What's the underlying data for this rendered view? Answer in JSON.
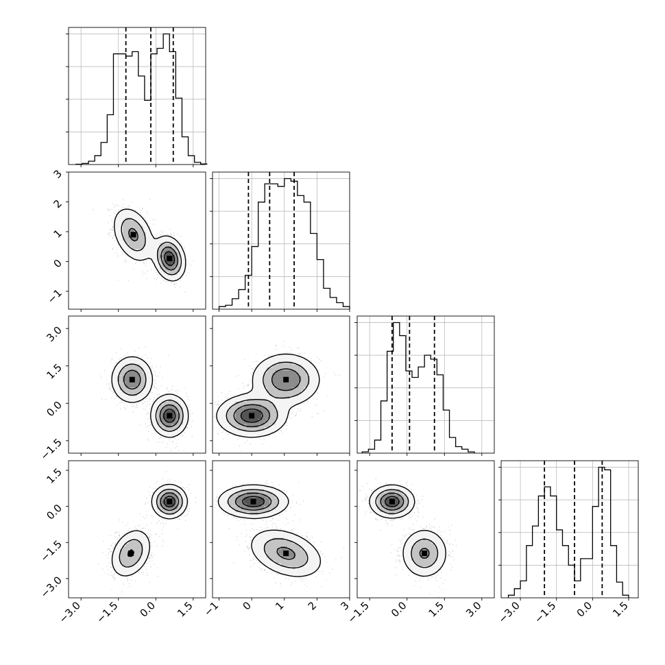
{
  "figure": {
    "type": "corner-plot",
    "n_params": 4
  },
  "chart_data": [
    {
      "type": "histogram",
      "panel": "hist-0",
      "row": 0,
      "col": 0,
      "xlim": [
        -3.5,
        2.0
      ],
      "bin_edges": [
        -3.2,
        -2.95,
        -2.7,
        -2.45,
        -2.2,
        -1.95,
        -1.7,
        -1.45,
        -1.2,
        -0.95,
        -0.7,
        -0.45,
        -0.2,
        0.05,
        0.3,
        0.55,
        0.8,
        1.05,
        1.3,
        1.55,
        1.8,
        2.05
      ],
      "counts": [
        0.3,
        1,
        3,
        8,
        20,
        45,
        100,
        100,
        98,
        102,
        80,
        58,
        100,
        105,
        118,
        102,
        60,
        25,
        8,
        2,
        0.5
      ],
      "quantiles": [
        -1.2,
        -0.2,
        0.7
      ],
      "grid": true
    },
    {
      "type": "histogram",
      "panel": "hist-1",
      "row": 1,
      "col": 1,
      "xlim": [
        -1.2,
        3.0
      ],
      "bin_edges": [
        -1.0,
        -0.8,
        -0.6,
        -0.4,
        -0.2,
        0.0,
        0.2,
        0.4,
        0.6,
        0.8,
        1.0,
        1.2,
        1.4,
        1.6,
        1.8,
        2.0,
        2.2,
        2.4,
        2.6,
        2.8,
        3.0
      ],
      "counts": [
        2,
        3,
        8,
        15,
        26,
        48,
        82,
        96,
        96,
        94,
        100,
        98,
        87,
        82,
        58,
        38,
        16,
        9,
        5,
        2
      ],
      "quantiles": [
        -0.1,
        0.55,
        1.3
      ],
      "grid": true
    },
    {
      "type": "histogram",
      "panel": "hist-2",
      "row": 2,
      "col": 2,
      "xlim": [
        -2.0,
        3.5
      ],
      "bin_edges": [
        -1.8,
        -1.55,
        -1.3,
        -1.05,
        -0.8,
        -0.55,
        -0.3,
        -0.05,
        0.2,
        0.45,
        0.7,
        0.95,
        1.2,
        1.45,
        1.7,
        1.95,
        2.2,
        2.45,
        2.7
      ],
      "counts": [
        1,
        3,
        10,
        40,
        78,
        100,
        90,
        63,
        58,
        66,
        75,
        72,
        60,
        33,
        12,
        5,
        3,
        1
      ],
      "quantiles": [
        -0.6,
        0.1,
        1.1
      ],
      "grid": true
    },
    {
      "type": "histogram",
      "panel": "hist-3",
      "row": 3,
      "col": 3,
      "xlim": [
        -3.8,
        1.9
      ],
      "bin_edges": [
        -3.5,
        -3.25,
        -3.0,
        -2.75,
        -2.5,
        -2.25,
        -2.0,
        -1.75,
        -1.5,
        -1.25,
        -1.0,
        -0.75,
        -0.5,
        -0.25,
        0.0,
        0.25,
        0.5,
        0.75,
        1.0,
        1.25,
        1.5
      ],
      "counts": [
        2,
        7,
        13,
        40,
        55,
        78,
        85,
        78,
        52,
        40,
        25,
        13,
        30,
        30,
        70,
        100,
        98,
        40,
        12,
        2
      ],
      "quantiles": [
        -2.0,
        -0.75,
        0.4
      ],
      "grid": true
    },
    {
      "type": "density-2d",
      "panel": "density-1-0",
      "row": 1,
      "col": 0,
      "xlim": [
        -3.5,
        2.0
      ],
      "ylim": [
        -1.6,
        3.0
      ],
      "modes": [
        {
          "x": -0.9,
          "y": 0.9,
          "sx": 0.4,
          "sy": 0.45,
          "rho": -0.35,
          "w": 0.5
        },
        {
          "x": 0.55,
          "y": 0.1,
          "sx": 0.3,
          "sy": 0.35,
          "rho": -0.2,
          "w": 0.5
        }
      ]
    },
    {
      "type": "density-2d",
      "panel": "density-2-0",
      "row": 2,
      "col": 0,
      "xlim": [
        -3.5,
        2.0
      ],
      "ylim": [
        -2.0,
        3.5
      ],
      "modes": [
        {
          "x": -0.95,
          "y": 0.95,
          "sx": 0.4,
          "sy": 0.45,
          "rho": 0.0,
          "w": 0.5
        },
        {
          "x": 0.55,
          "y": -0.5,
          "sx": 0.35,
          "sy": 0.4,
          "rho": 0.0,
          "w": 0.5
        }
      ]
    },
    {
      "type": "density-2d",
      "panel": "density-2-1",
      "row": 2,
      "col": 1,
      "xlim": [
        -1.2,
        3.0
      ],
      "ylim": [
        -2.0,
        3.5
      ],
      "modes": [
        {
          "x": 1.05,
          "y": 0.95,
          "sx": 0.5,
          "sy": 0.5,
          "rho": 0.0,
          "w": 0.5
        },
        {
          "x": 0.0,
          "y": -0.5,
          "sx": 0.5,
          "sy": 0.4,
          "rho": 0.0,
          "w": 0.5
        }
      ]
    },
    {
      "type": "density-2d",
      "panel": "density-3-0",
      "row": 3,
      "col": 0,
      "xlim": [
        -3.5,
        2.0
      ],
      "ylim": [
        -3.8,
        1.9
      ],
      "modes": [
        {
          "x": 0.55,
          "y": 0.2,
          "sx": 0.33,
          "sy": 0.33,
          "rho": 0.0,
          "w": 0.5
        },
        {
          "x": -1.0,
          "y": -1.95,
          "sx": 0.4,
          "sy": 0.5,
          "rho": 0.3,
          "w": 0.5
        }
      ]
    },
    {
      "type": "density-2d",
      "panel": "density-3-1",
      "row": 3,
      "col": 1,
      "xlim": [
        -1.2,
        3.0
      ],
      "ylim": [
        -3.8,
        1.9
      ],
      "modes": [
        {
          "x": 0.05,
          "y": 0.2,
          "sx": 0.5,
          "sy": 0.32,
          "rho": 0.0,
          "w": 0.5
        },
        {
          "x": 1.05,
          "y": -1.95,
          "sx": 0.55,
          "sy": 0.5,
          "rho": -0.35,
          "w": 0.5
        }
      ]
    },
    {
      "type": "density-2d",
      "panel": "density-3-2",
      "row": 3,
      "col": 2,
      "xlim": [
        -2.0,
        3.5
      ],
      "ylim": [
        -3.8,
        1.9
      ],
      "modes": [
        {
          "x": -0.6,
          "y": 0.2,
          "sx": 0.42,
          "sy": 0.32,
          "rho": 0.0,
          "w": 0.5
        },
        {
          "x": 0.7,
          "y": -1.95,
          "sx": 0.45,
          "sy": 0.5,
          "rho": 0.0,
          "w": 0.5
        }
      ]
    }
  ],
  "axes": {
    "x": [
      {
        "ticks": [
          -3.0,
          -1.5,
          0.0,
          1.5
        ],
        "labels": [
          "−3.0",
          "−1.5",
          "0.0",
          "1.5"
        ]
      },
      {
        "ticks": [
          -1,
          0,
          1,
          2,
          3
        ],
        "labels": [
          "−1",
          "0",
          "1",
          "2",
          "3"
        ]
      },
      {
        "ticks": [
          -1.5,
          0.0,
          1.5,
          3.0
        ],
        "labels": [
          "−1.5",
          "0.0",
          "1.5",
          "3.0"
        ]
      },
      {
        "ticks": [
          -3.0,
          -1.5,
          0.0,
          1.5
        ],
        "labels": [
          "−3.0",
          "−1.5",
          "0.0",
          "1.5"
        ]
      }
    ],
    "y": [
      null,
      {
        "ticks": [
          -1,
          0,
          1,
          2,
          3
        ],
        "labels": [
          "−1",
          "0",
          "1",
          "2",
          "3"
        ]
      },
      {
        "ticks": [
          -1.5,
          0.0,
          1.5,
          3.0
        ],
        "labels": [
          "−1.5",
          "0.0",
          "1.5",
          "3.0"
        ]
      },
      {
        "ticks": [
          -3.0,
          -1.5,
          0.0,
          1.5
        ],
        "labels": [
          "−3.0",
          "−1.5",
          "0.0",
          "1.5"
        ]
      }
    ]
  },
  "colors": {
    "line": "#000000",
    "grid": "#b0b0b0",
    "scatter": "#808080"
  }
}
